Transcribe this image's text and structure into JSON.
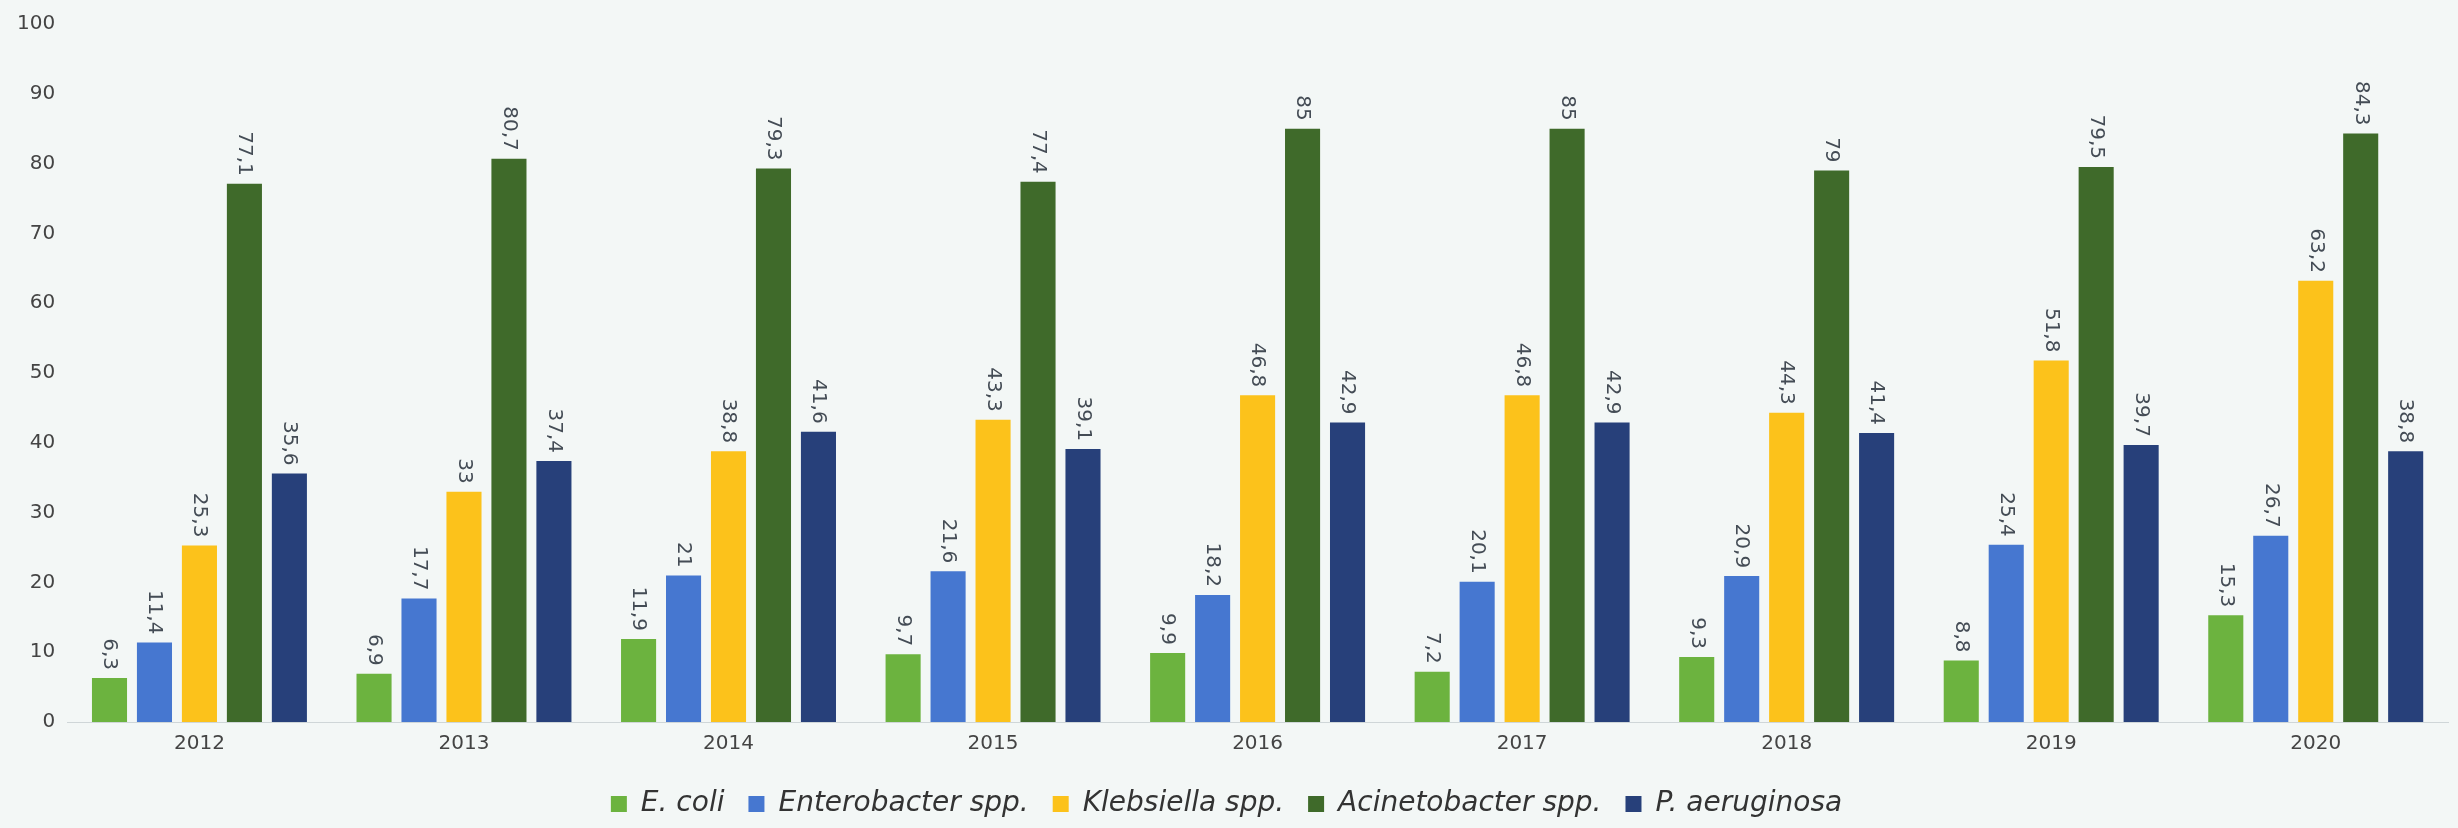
{
  "chart_data": {
    "type": "bar",
    "categories": [
      "2012",
      "2013",
      "2014",
      "2015",
      "2016",
      "2017",
      "2018",
      "2019",
      "2020"
    ],
    "series": [
      {
        "name": "E. coli",
        "color": "#6cb33f",
        "values": [
          6.3,
          6.9,
          11.9,
          9.7,
          9.9,
          7.2,
          9.3,
          8.8,
          15.3
        ],
        "value_labels": [
          "6,3",
          "6,9",
          "11,9",
          "9,7",
          "9,9",
          "7,2",
          "9,3",
          "8,8",
          "15,3"
        ]
      },
      {
        "name": "Enterobacter spp.",
        "color": "#4677d0",
        "values": [
          11.4,
          17.7,
          21,
          21.6,
          18.2,
          20.1,
          20.9,
          25.4,
          26.7
        ],
        "value_labels": [
          "11,4",
          "17,7",
          "21",
          "21,6",
          "18,2",
          "20,1",
          "20,9",
          "25,4",
          "26,7"
        ]
      },
      {
        "name": "Klebsiella spp.",
        "color": "#fcc21b",
        "values": [
          25.3,
          33,
          38.8,
          43.3,
          46.8,
          46.8,
          44.3,
          51.8,
          63.2
        ],
        "value_labels": [
          "25,3",
          "33",
          "38,8",
          "43,3",
          "46,8",
          "46,8",
          "44,3",
          "51,8",
          "63,2"
        ]
      },
      {
        "name": "Acinetobacter spp.",
        "color": "#3f6a2a",
        "values": [
          77.1,
          80.7,
          79.3,
          77.4,
          85,
          85,
          79,
          79.5,
          84.3
        ],
        "value_labels": [
          "77,1",
          "80,7",
          "79,3",
          "77,4",
          "85",
          "85",
          "79",
          "79,5",
          "84,3"
        ]
      },
      {
        "name": "P. aeruginosa",
        "color": "#27407a",
        "values": [
          35.6,
          37.4,
          41.6,
          39.1,
          42.9,
          42.9,
          41.4,
          39.7,
          38.8
        ],
        "value_labels": [
          "35,6",
          "37,4",
          "41,6",
          "39,1",
          "42,9",
          "42,9",
          "41,4",
          "39,7",
          "38,8"
        ]
      }
    ],
    "ylim": [
      0,
      100
    ],
    "yticks": [
      0,
      10,
      20,
      30,
      40,
      50,
      60,
      70,
      80,
      90,
      100
    ],
    "grid": false,
    "legend": "bottom"
  }
}
